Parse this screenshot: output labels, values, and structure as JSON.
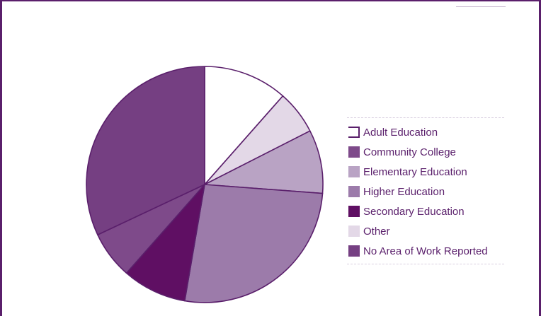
{
  "chart_data": {
    "type": "pie",
    "title": "",
    "start_angle_deg": 0,
    "direction": "clockwise",
    "slices": [
      {
        "label": "Adult Education",
        "value": 11.5,
        "color": "#ffffff"
      },
      {
        "label": "Other",
        "value": 6.0,
        "color": "#e3d8e7"
      },
      {
        "label": "Elementary Education",
        "value": 8.7,
        "color": "#b9a3c4"
      },
      {
        "label": "Higher Education",
        "value": 26.5,
        "color": "#9c7baa"
      },
      {
        "label": "Secondary Education",
        "value": 8.8,
        "color": "#5f0f63"
      },
      {
        "label": "Community College",
        "value": 6.5,
        "color": "#7e4a8a"
      },
      {
        "label": "No Area of Work Reported",
        "value": 32.0,
        "color": "#753f82"
      }
    ],
    "legend": {
      "placement": "right",
      "entries": [
        {
          "label": "Adult Education",
          "color": "#ffffff"
        },
        {
          "label": "Community College",
          "color": "#7e4a8a"
        },
        {
          "label": "Elementary Education",
          "color": "#b9a3c4"
        },
        {
          "label": "Higher Education",
          "color": "#9c7baa"
        },
        {
          "label": "Secondary Education",
          "color": "#5f0f63"
        },
        {
          "label": "Other",
          "color": "#e3d8e7"
        },
        {
          "label": "No Area of Work Reported",
          "color": "#753f82"
        }
      ]
    },
    "outline_color": "#5a1f6b"
  }
}
